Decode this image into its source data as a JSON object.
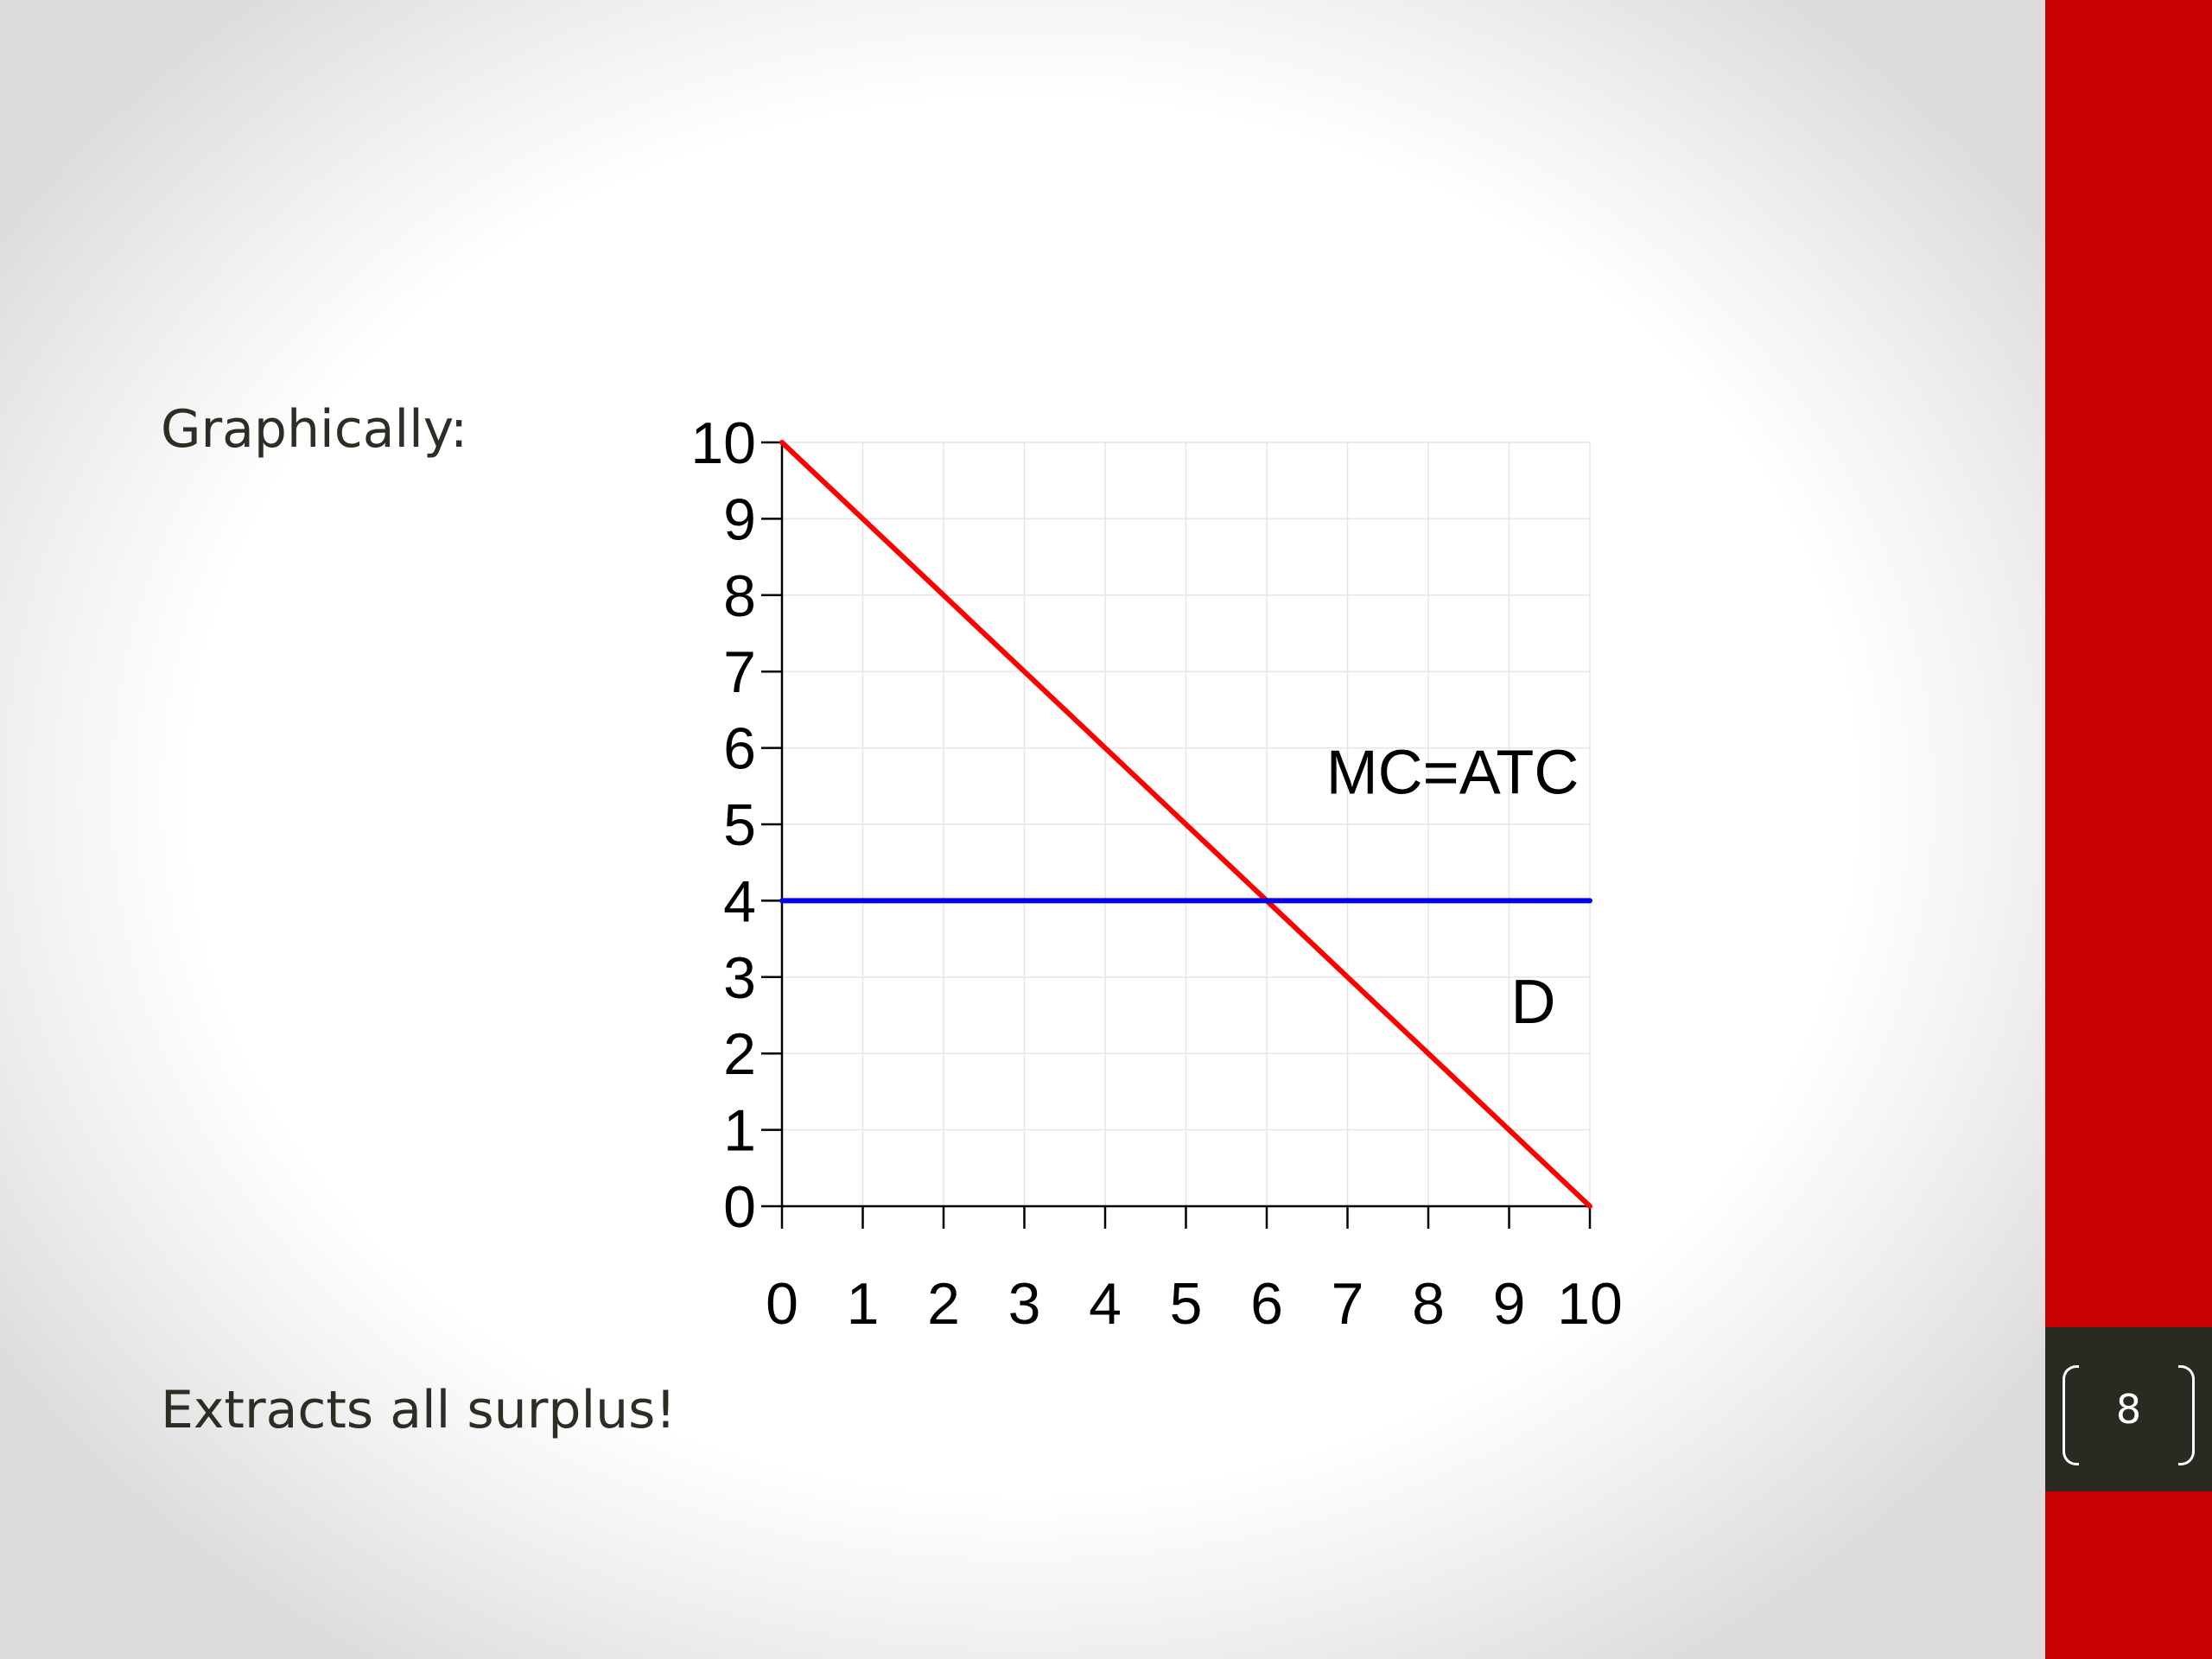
{
  "slide": {
    "heading": "Graphically:",
    "footer_text": "Extracts all surplus!",
    "page_number": "8"
  },
  "colors": {
    "sidebar": "#c80000",
    "page_box": "#2b2a22",
    "demand_line": "#ff0000",
    "mc_atc_line": "#0000ee",
    "text": "#2e2c24"
  },
  "chart_data": {
    "type": "line",
    "xlim": [
      0,
      10
    ],
    "ylim": [
      0,
      10
    ],
    "x_ticks": [
      0,
      1,
      2,
      3,
      4,
      5,
      6,
      7,
      8,
      9,
      10
    ],
    "y_ticks": [
      0,
      1,
      2,
      3,
      4,
      5,
      6,
      7,
      8,
      9,
      10
    ],
    "grid": true,
    "series": [
      {
        "name": "D",
        "color": "#ff0000",
        "points": [
          [
            0,
            10
          ],
          [
            10,
            0
          ]
        ]
      },
      {
        "name": "MC=ATC",
        "color": "#0000ee",
        "points": [
          [
            0,
            4
          ],
          [
            10,
            4
          ]
        ]
      }
    ],
    "annotations": [
      {
        "text": "MC=ATC",
        "x": 8.3,
        "y": 5.4
      },
      {
        "text": "D",
        "x": 9.3,
        "y": 2.4
      }
    ]
  }
}
